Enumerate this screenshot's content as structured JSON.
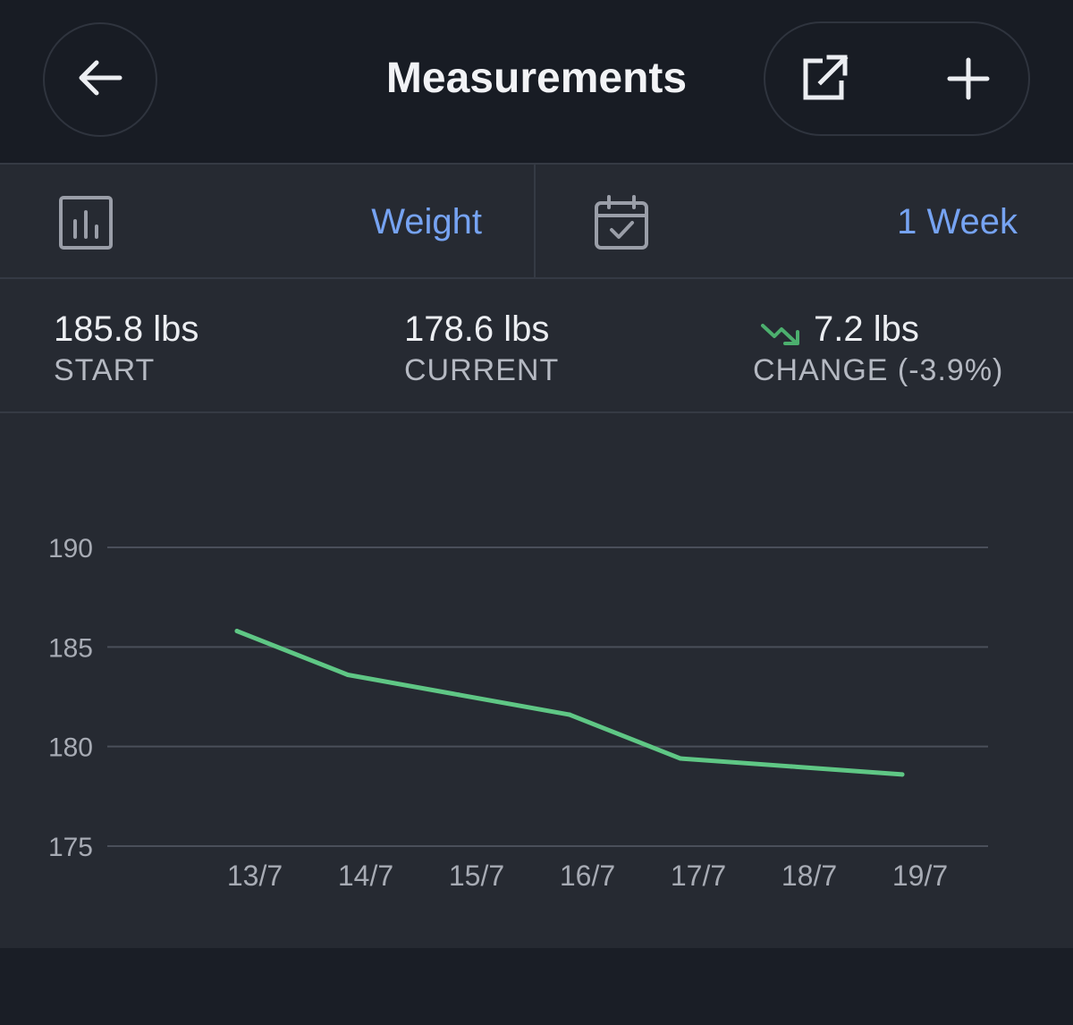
{
  "header": {
    "title": "Measurements",
    "icons": {
      "back": "arrow-left-icon",
      "export": "external-link-icon",
      "add": "plus-icon"
    }
  },
  "selector": {
    "metric": {
      "icon": "bar-chart-icon",
      "value": "Weight"
    },
    "range": {
      "icon": "calendar-check-icon",
      "value": "1 Week"
    }
  },
  "stats": {
    "start": {
      "value": "185.8 lbs",
      "label": "START"
    },
    "current": {
      "value": "178.6 lbs",
      "label": "CURRENT"
    },
    "change": {
      "icon": "trending-down-icon",
      "value": "7.2 lbs",
      "label": "CHANGE (-3.9%)"
    }
  },
  "colors": {
    "accent": "#76a3f2",
    "line": "#5fc785",
    "trend_down": "#4caf6e",
    "background": "#262a32",
    "header": "#181c24"
  },
  "chart_data": {
    "type": "line",
    "categories": [
      "13/7",
      "14/7",
      "15/7",
      "16/7",
      "17/7",
      "18/7",
      "19/7"
    ],
    "series": [
      {
        "values": [
          185.8,
          183.6,
          182.6,
          181.6,
          179.4,
          179.0,
          178.6
        ]
      }
    ],
    "yticks": [
      190,
      185,
      180,
      175
    ],
    "ylim": [
      175,
      190
    ],
    "grid": true,
    "legend": "none",
    "title": "",
    "xlabel": "",
    "ylabel": ""
  }
}
